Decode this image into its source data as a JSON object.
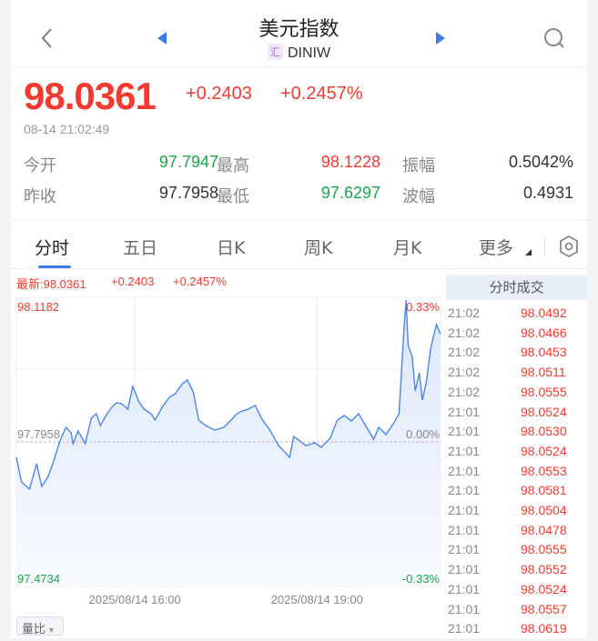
{
  "header": {
    "title": "美元指数",
    "code_badge": "汇",
    "code": "DINIW",
    "back_icon": "chevron-left-icon",
    "prev_icon": "triangle-left-icon",
    "next_icon": "triangle-right-icon",
    "search_icon": "search-icon"
  },
  "quote": {
    "price": "98.0361",
    "change": "+0.2403",
    "change_pct": "+0.2457%",
    "timestamp": "08-14 21:02:49"
  },
  "stats": [
    {
      "label": "今开",
      "value": "97.7947",
      "color": "green"
    },
    {
      "label": "最高",
      "value": "98.1228",
      "color": "red"
    },
    {
      "label": "振幅",
      "value": "0.5042%",
      "color": "dark"
    },
    {
      "label": "昨收",
      "value": "97.7958",
      "color": "dark"
    },
    {
      "label": "最低",
      "value": "97.6297",
      "color": "green"
    },
    {
      "label": "波幅",
      "value": "0.4931",
      "color": "dark"
    }
  ],
  "tabs": [
    {
      "label": "分时",
      "active": true
    },
    {
      "label": "五日"
    },
    {
      "label": "日K"
    },
    {
      "label": "周K"
    },
    {
      "label": "月K"
    },
    {
      "label": "更多"
    }
  ],
  "settings_icon": "gear-icon",
  "chart_stats": {
    "latest": "最新:98.0361",
    "change": "+0.2403",
    "change_pct": "+0.2457%"
  },
  "colors": {
    "up": "#f23a2f",
    "down": "#19a84a",
    "line": "#4a86e8",
    "accent": "#3d7be6"
  },
  "chart_data": {
    "type": "area",
    "ylim": [
      97.4734,
      98.1182
    ],
    "y_labels": {
      "top": "98.1182",
      "mid": "97.7958",
      "bottom": "97.4734"
    },
    "pct_labels": {
      "top": "0.33%",
      "mid": "0.00%",
      "bottom": "-0.33%"
    },
    "x_tick_labels": [
      "2025/08/14 16:00",
      "2025/08/14 19:00"
    ],
    "xlim": [
      "14:03",
      "21:02"
    ],
    "baseline": 97.7958,
    "grid": true,
    "x": [
      "14:03",
      "14:08",
      "14:16",
      "14:23",
      "14:28",
      "14:34",
      "14:39",
      "14:46",
      "14:52",
      "14:57",
      "14:59",
      "15:04",
      "15:11",
      "15:17",
      "15:22",
      "15:26",
      "15:31",
      "15:37",
      "15:42",
      "15:47",
      "15:53",
      "15:58",
      "16:04",
      "16:09",
      "16:16",
      "16:20",
      "16:27",
      "16:34",
      "16:40",
      "16:47",
      "16:52",
      "16:58",
      "17:03",
      "17:10",
      "17:19",
      "17:28",
      "17:35",
      "17:41",
      "17:46",
      "17:52",
      "17:59",
      "18:06",
      "18:13",
      "18:22",
      "18:28",
      "18:33",
      "18:37",
      "18:42",
      "18:49",
      "18:58",
      "19:04",
      "19:13",
      "19:20",
      "19:27",
      "19:34",
      "19:41",
      "19:49",
      "19:56",
      "20:01",
      "20:08",
      "20:16",
      "20:21",
      "20:26",
      "20:28",
      "20:30",
      "20:34",
      "20:37",
      "20:41",
      "20:44",
      "20:48",
      "20:52",
      "20:55",
      "20:58",
      "21:01",
      "21:02"
    ],
    "values": [
      97.7613,
      97.7065,
      97.6903,
      97.7471,
      97.6964,
      97.7167,
      97.7471,
      97.7978,
      97.8282,
      97.816,
      97.7917,
      97.8201,
      97.7917,
      97.8485,
      97.8586,
      97.8323,
      97.8525,
      97.8728,
      97.883,
      97.8809,
      97.8688,
      97.9195,
      97.885,
      97.8688,
      97.8586,
      97.8444,
      97.8728,
      97.8951,
      97.9032,
      97.9255,
      97.9337,
      97.9053,
      97.8444,
      97.8323,
      97.8221,
      97.8282,
      97.8444,
      97.8586,
      97.8647,
      97.8688,
      97.8769,
      97.8444,
      97.8241,
      97.7876,
      97.7734,
      97.7613,
      97.8079,
      97.7998,
      97.7876,
      97.7937,
      97.7836,
      97.8039,
      97.8444,
      97.8546,
      97.8424,
      97.8586,
      97.8282,
      97.8018,
      97.8282,
      97.812,
      97.8383,
      97.8586,
      98.0513,
      98.112,
      98.0107,
      97.9864,
      97.9093,
      97.9499,
      97.889,
      97.9296,
      98.0006,
      98.031,
      98.0574,
      98.0411,
      98.0361
    ]
  },
  "trades": {
    "title": "分时成交",
    "rows": [
      {
        "time": "21:02",
        "price": "98.0492"
      },
      {
        "time": "21:02",
        "price": "98.0466"
      },
      {
        "time": "21:02",
        "price": "98.0453"
      },
      {
        "time": "21:02",
        "price": "98.0511"
      },
      {
        "time": "21:02",
        "price": "98.0555"
      },
      {
        "time": "21:01",
        "price": "98.0524"
      },
      {
        "time": "21:01",
        "price": "98.0530"
      },
      {
        "time": "21:01",
        "price": "98.0524"
      },
      {
        "time": "21:01",
        "price": "98.0553"
      },
      {
        "time": "21:01",
        "price": "98.0581"
      },
      {
        "time": "21:01",
        "price": "98.0504"
      },
      {
        "time": "21:01",
        "price": "98.0478"
      },
      {
        "time": "21:01",
        "price": "98.0555"
      },
      {
        "time": "21:01",
        "price": "98.0552"
      },
      {
        "time": "21:01",
        "price": "98.0524"
      },
      {
        "time": "21:01",
        "price": "98.0557"
      },
      {
        "time": "21:01",
        "price": "98.0619"
      }
    ]
  },
  "indicator": {
    "label": "量比"
  }
}
